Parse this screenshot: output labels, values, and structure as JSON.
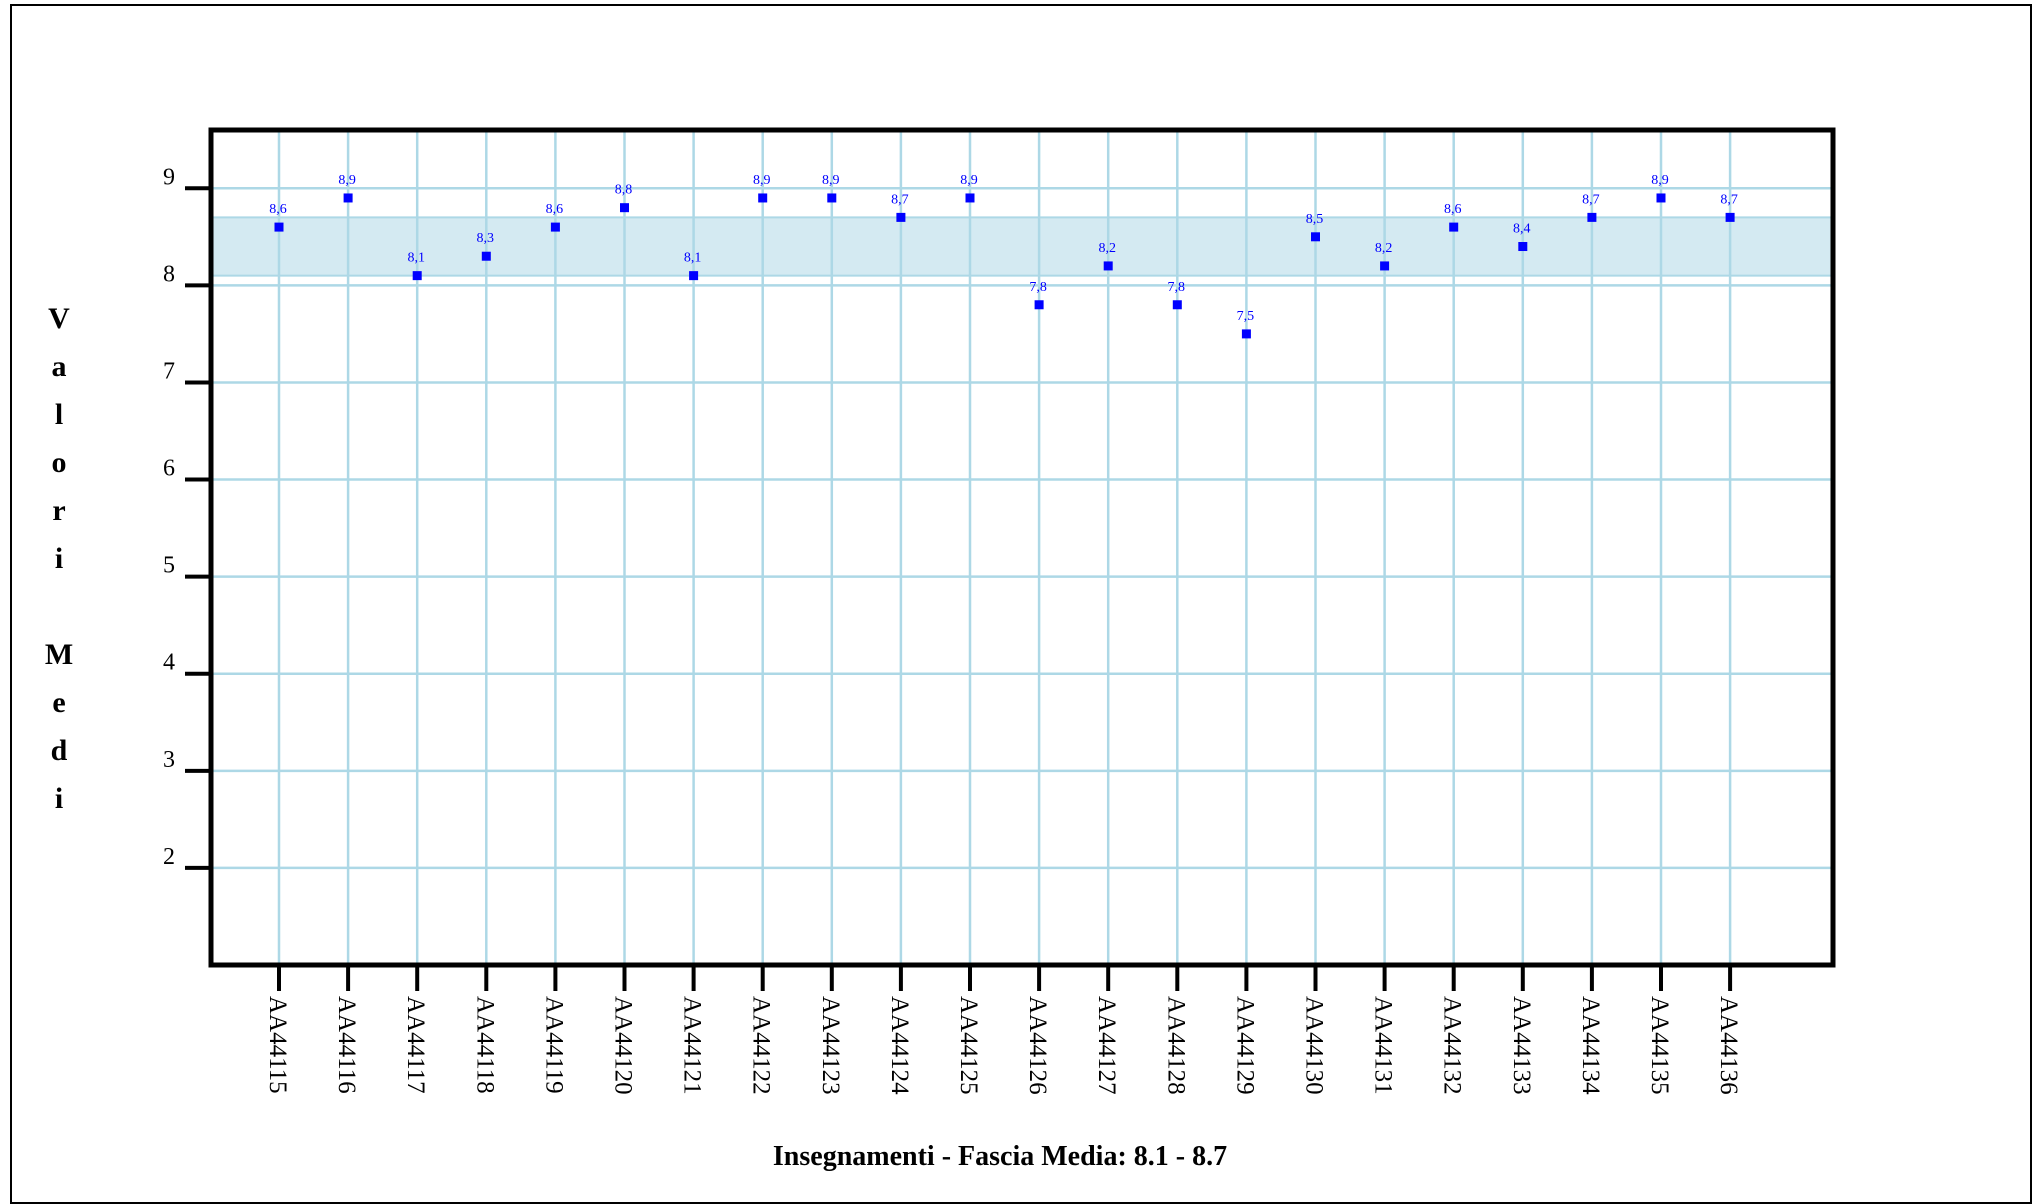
{
  "chart_data": {
    "type": "scatter",
    "title": "",
    "xlabel": "Insegnamenti - Fascia Media: 8.1 - 8.7",
    "ylabel": "Valori Medi",
    "categories": [
      "AA44115",
      "AA44116",
      "AA44117",
      "AA44118",
      "AA44119",
      "AA44120",
      "AA44121",
      "AA44122",
      "AA44123",
      "AA44124",
      "AA44125",
      "AA44126",
      "AA44127",
      "AA44128",
      "AA44129",
      "AA44130",
      "AA44131",
      "AA44132",
      "AA44133",
      "AA44134",
      "AA44135",
      "AA44136"
    ],
    "values": [
      8.6,
      8.9,
      8.1,
      8.3,
      8.6,
      8.8,
      8.1,
      8.9,
      8.9,
      8.7,
      8.9,
      7.8,
      8.2,
      7.8,
      7.5,
      8.5,
      8.2,
      8.6,
      8.4,
      8.7,
      8.9,
      8.7
    ],
    "value_labels": [
      "8,6",
      "8,9",
      "8,1",
      "8,3",
      "8,6",
      "8,8",
      "8,1",
      "8,9",
      "8,9",
      "8,7",
      "8,9",
      "7,8",
      "8,2",
      "7,8",
      "7,5",
      "8,5",
      "8,2",
      "8,6",
      "8,4",
      "8,7",
      "8,9",
      "8,7"
    ],
    "ylim": [
      1,
      9.6
    ],
    "yticks": [
      2,
      3,
      4,
      5,
      6,
      7,
      8,
      9
    ],
    "band": [
      8.1,
      8.7
    ],
    "grid": true,
    "colors": {
      "marker": "#0000ff",
      "grid": "#add8e6",
      "band": "#d4eaf2",
      "axis": "#000000"
    }
  }
}
